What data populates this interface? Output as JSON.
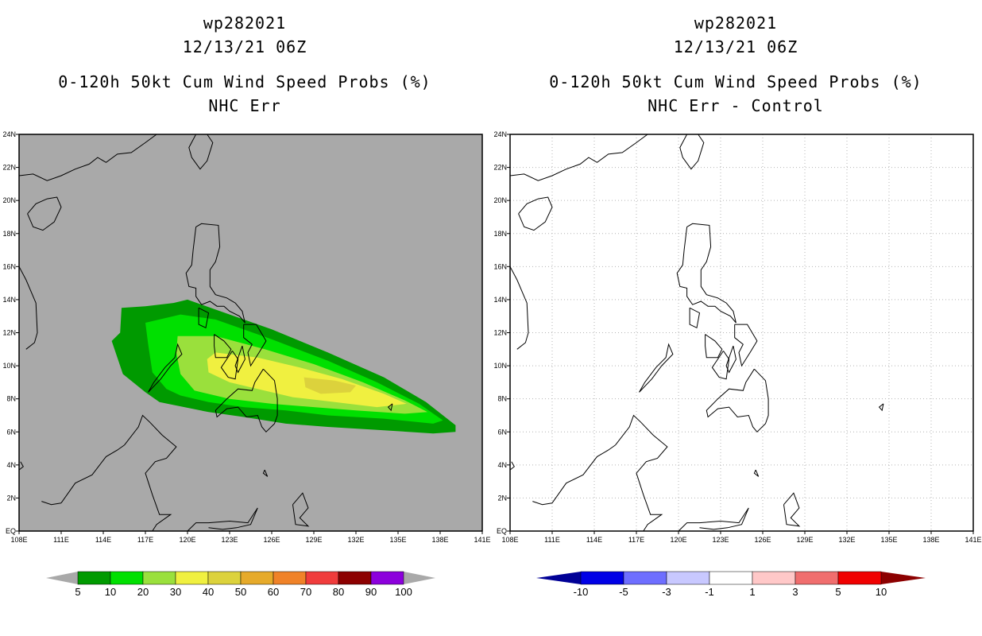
{
  "left": {
    "title": {
      "line1": "wp282021",
      "line2": "12/13/21 06Z",
      "line3": "0-120h 50kt Cum Wind Speed Probs (%)",
      "line4": "NHC Err"
    }
  },
  "right": {
    "title": {
      "line1": "wp282021",
      "line2": "12/13/21 06Z",
      "line3": "0-120h 50kt Cum Wind Speed Probs (%)",
      "line4": "NHC Err - Control"
    }
  },
  "chart_data": [
    {
      "type": "heatmap",
      "title": "0-120h 50kt Cum Wind Speed Probs (%) - NHC Err",
      "storm": "wp282021",
      "time": "12/13/21 06Z",
      "xlim": [
        108,
        141
      ],
      "ylim": [
        0,
        24
      ],
      "xticks": [
        "108E",
        "111E",
        "114E",
        "117E",
        "120E",
        "123E",
        "126E",
        "129E",
        "132E",
        "135E",
        "138E",
        "141E"
      ],
      "yticks": [
        "EQ",
        "2N",
        "4N",
        "6N",
        "8N",
        "10N",
        "12N",
        "14N",
        "16N",
        "18N",
        "20N",
        "22N",
        "24N"
      ],
      "background_color": "#a9a9a9",
      "grid": false,
      "contours": [
        {
          "level": 5,
          "color": "#009a00",
          "polygon_lonlat": [
            [
              115.3,
              13.5
            ],
            [
              117,
              13.6
            ],
            [
              119,
              13.8
            ],
            [
              120,
              14.0
            ],
            [
              122,
              13.4
            ],
            [
              126,
              12.2
            ],
            [
              130,
              10.8
            ],
            [
              134,
              9.3
            ],
            [
              137,
              7.8
            ],
            [
              139.1,
              6.4
            ],
            [
              139.1,
              6.0
            ],
            [
              137.5,
              5.9
            ],
            [
              134,
              6.1
            ],
            [
              130,
              6.3
            ],
            [
              127,
              6.5
            ],
            [
              124,
              6.9
            ],
            [
              121.5,
              7.2
            ],
            [
              118,
              7.8
            ],
            [
              117,
              8.4
            ],
            [
              115.4,
              9.5
            ],
            [
              114.6,
              11.5
            ],
            [
              115.2,
              12.0
            ]
          ]
        },
        {
          "level": 10,
          "color": "#00e000",
          "polygon_lonlat": [
            [
              117,
              12.6
            ],
            [
              119.5,
              13.1
            ],
            [
              122,
              12.8
            ],
            [
              126,
              11.6
            ],
            [
              130,
              10.3
            ],
            [
              133.5,
              9.0
            ],
            [
              136.5,
              7.7
            ],
            [
              138.2,
              6.7
            ],
            [
              137.5,
              6.5
            ],
            [
              134,
              6.8
            ],
            [
              130,
              7.0
            ],
            [
              127,
              7.3
            ],
            [
              124,
              7.5
            ],
            [
              121.5,
              7.8
            ],
            [
              119.5,
              8.2
            ],
            [
              118.5,
              8.6
            ],
            [
              117.5,
              9.6
            ],
            [
              117.2,
              11.3
            ]
          ]
        },
        {
          "level": 20,
          "color": "#9ae03c",
          "polygon_lonlat": [
            [
              119.3,
              11.8
            ],
            [
              122,
              11.8
            ],
            [
              125.5,
              11.0
            ],
            [
              129,
              10.1
            ],
            [
              132.5,
              9.0
            ],
            [
              135.5,
              7.9
            ],
            [
              137.1,
              7.2
            ],
            [
              135.5,
              7.1
            ],
            [
              132,
              7.3
            ],
            [
              129,
              7.5
            ],
            [
              126,
              7.7
            ],
            [
              123,
              8.0
            ],
            [
              120.5,
              8.5
            ],
            [
              119.5,
              9.5
            ],
            [
              119.2,
              10.8
            ]
          ]
        },
        {
          "level": 30,
          "color": "#f0f040",
          "polygon_lonlat": [
            [
              122,
              10.8
            ],
            [
              125,
              10.5
            ],
            [
              128,
              9.9
            ],
            [
              131,
              9.2
            ],
            [
              134,
              8.3
            ],
            [
              135.6,
              7.7
            ],
            [
              133.5,
              7.5
            ],
            [
              130.5,
              7.8
            ],
            [
              127.5,
              8.1
            ],
            [
              125,
              8.6
            ],
            [
              123,
              9.0
            ],
            [
              121.5,
              9.6
            ],
            [
              121.4,
              10.4
            ]
          ]
        },
        {
          "level": 40,
          "color": "#dcd23c",
          "polygon_lonlat": [
            [
              128.3,
              9.3
            ],
            [
              130.5,
              9.1
            ],
            [
              132,
              8.8
            ],
            [
              131.6,
              8.4
            ],
            [
              129.5,
              8.3
            ],
            [
              128.4,
              8.7
            ]
          ]
        }
      ],
      "colorbar": {
        "labels": [
          "5",
          "10",
          "20",
          "30",
          "40",
          "50",
          "60",
          "70",
          "80",
          "90",
          "100"
        ],
        "colors": [
          "#009a00",
          "#00e000",
          "#9ae03c",
          "#f0f040",
          "#dcd23c",
          "#e6aa2a",
          "#f08228",
          "#f03c3c",
          "#8c0000",
          "#8c00dc"
        ],
        "extend_color": "#a9a9a9"
      }
    },
    {
      "type": "heatmap",
      "title": "0-120h 50kt Cum Wind Speed Probs (%) - NHC Err - Control",
      "storm": "wp282021",
      "time": "12/13/21 06Z",
      "xlim": [
        108,
        141
      ],
      "ylim": [
        0,
        24
      ],
      "xticks": [
        "108E",
        "111E",
        "114E",
        "117E",
        "120E",
        "123E",
        "126E",
        "129E",
        "132E",
        "135E",
        "138E",
        "141E"
      ],
      "yticks": [
        "EQ",
        "2N",
        "4N",
        "6N",
        "8N",
        "10N",
        "12N",
        "14N",
        "16N",
        "18N",
        "20N",
        "22N",
        "24N"
      ],
      "background_color": "#ffffff",
      "grid": true,
      "contours": [],
      "colorbar": {
        "labels": [
          "-10",
          "-5",
          "-3",
          "-1",
          "1",
          "3",
          "5",
          "10"
        ],
        "colors": [
          "#0000e6",
          "#6e6eff",
          "#c8c8ff",
          "#ffffff",
          "#ffc8c8",
          "#f06e6e",
          "#f00000"
        ],
        "extend_low_color": "#000096",
        "extend_high_color": "#8c0000"
      }
    }
  ]
}
